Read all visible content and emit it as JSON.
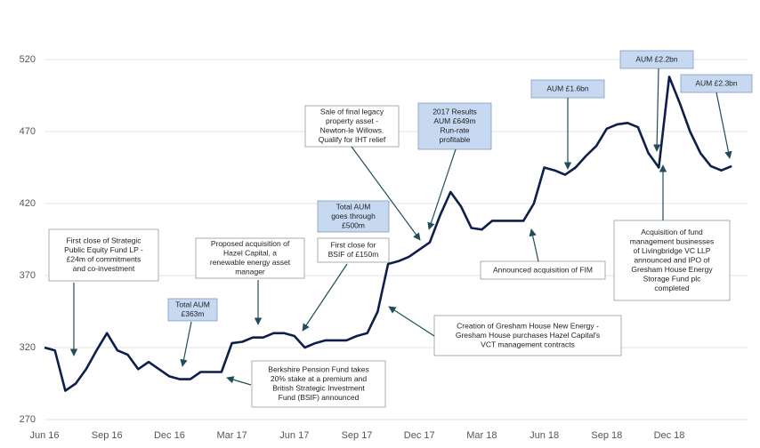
{
  "chart_data": {
    "type": "line",
    "color": "#0d1f4a",
    "categories": [
      "Jun 16",
      null,
      null,
      null,
      null,
      null,
      "Sep 16",
      null,
      null,
      null,
      null,
      null,
      "Dec 16",
      null,
      null,
      null,
      null,
      null,
      "Mar 17",
      null,
      null,
      null,
      null,
      null,
      "Jun 17",
      null,
      null,
      null,
      null,
      null,
      "Sep 17",
      null,
      null,
      null,
      null,
      null,
      "Dec 17",
      null,
      null,
      null,
      null,
      null,
      "Mar 18",
      null,
      null,
      null,
      null,
      null,
      "Jun 18",
      null,
      null,
      null,
      null,
      null,
      "Sep 18",
      null,
      null,
      null,
      null,
      null,
      "Dec 18",
      null,
      null,
      null,
      null,
      null,
      null
    ],
    "values": [
      320,
      318,
      290,
      295,
      305,
      318,
      330,
      318,
      315,
      305,
      310,
      305,
      300,
      298,
      298,
      303,
      303,
      303,
      323,
      324,
      327,
      327,
      330,
      330,
      328,
      320,
      323,
      325,
      325,
      325,
      328,
      330,
      345,
      378,
      380,
      383,
      388,
      393,
      412,
      428,
      418,
      403,
      402,
      408,
      408,
      408,
      408,
      420,
      445,
      443,
      440,
      445,
      453,
      460,
      472,
      475,
      476,
      473,
      455,
      445,
      508,
      490,
      470,
      455,
      446,
      443,
      446
    ],
    "ylim": [
      270,
      520
    ],
    "yticks": [
      270,
      320,
      370,
      420,
      470,
      520
    ],
    "grid": true,
    "annotations": [
      {
        "lines": [
          "First close of Strategic",
          "Public Equity Fund LP -",
          "£24m of commitments",
          "and co-investment"
        ],
        "style": "plain"
      },
      {
        "lines": [
          "Total AUM",
          "£363m"
        ],
        "style": "highlight"
      },
      {
        "lines": [
          "Proposed acquisition of",
          "Hazel Capital, a",
          "renewable energy asset",
          "manager"
        ],
        "style": "plain"
      },
      {
        "lines": [
          "Total AUM",
          "goes through",
          "£500m"
        ],
        "style": "highlight"
      },
      {
        "lines": [
          "First close for",
          "BSIF of £150m"
        ],
        "style": "plain"
      },
      {
        "lines": [
          "Berkshire Pension Fund takes",
          "20% stake at a premium and",
          "British Strategic Investment",
          "Fund (BSIF) announced"
        ],
        "style": "plain"
      },
      {
        "lines": [
          "Sale of final legacy",
          "property asset -",
          "Newton-le Willows.",
          "Qualify for IHT relief"
        ],
        "style": "plain"
      },
      {
        "lines": [
          "2017 Results",
          "AUM £649m",
          "Run-rate",
          "profitable"
        ],
        "style": "highlight"
      },
      {
        "lines": [
          "Creation of Gresham House New Energy -",
          "Gresham House purchases Hazel Capital's",
          "VCT management contracts"
        ],
        "style": "plain"
      },
      {
        "lines": [
          "Announced acquisition of FIM"
        ],
        "style": "plain"
      },
      {
        "lines": [
          "AUM £1.6bn"
        ],
        "style": "highlight"
      },
      {
        "lines": [
          "AUM £2.2bn"
        ],
        "style": "highlight"
      },
      {
        "lines": [
          "AUM £2.3bn"
        ],
        "style": "highlight"
      },
      {
        "lines": [
          "Acquisition of fund",
          "management businesses",
          "of Livingbridge VC LLP",
          "announced and IPO of",
          "Gresham House Energy",
          "Storage Fund plc",
          "completed"
        ],
        "style": "plain"
      }
    ]
  }
}
